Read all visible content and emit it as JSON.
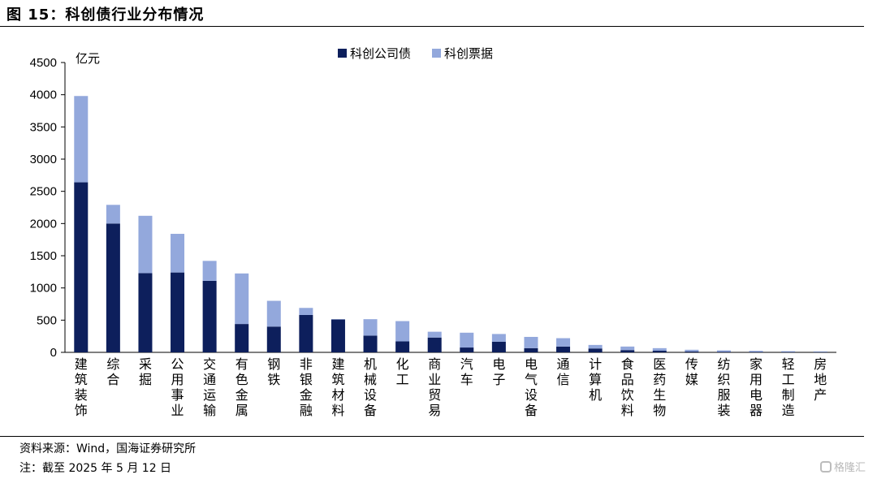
{
  "figure_title": "图 15：科创债行业分布情况",
  "chart_data": {
    "type": "bar",
    "stacked": true,
    "unit_label": "亿元",
    "ylim": [
      0,
      4500
    ],
    "yticks": [
      0,
      500,
      1000,
      1500,
      2000,
      2500,
      3000,
      3500,
      4000,
      4500
    ],
    "grid": false,
    "legend_position": "top-center",
    "categories": [
      "建筑装饰",
      "综合",
      "采掘",
      "公用事业",
      "交通运输",
      "有色金属",
      "钢铁",
      "非银金融",
      "建筑材料",
      "机械设备",
      "化工",
      "商业贸易",
      "汽车",
      "电子",
      "电气设备",
      "通信",
      "计算机",
      "食品饮料",
      "医药生物",
      "传媒",
      "纺织服装",
      "家用电器",
      "轻工制造",
      "房地产"
    ],
    "series": [
      {
        "name": "科创公司债",
        "color": "#0d1f5c",
        "values": [
          2640,
          2000,
          1230,
          1240,
          1110,
          440,
          400,
          580,
          510,
          260,
          170,
          230,
          75,
          165,
          65,
          90,
          60,
          35,
          25,
          15,
          10,
          8,
          5,
          4
        ]
      },
      {
        "name": "科创票据",
        "color": "#93a8dc",
        "values": [
          1340,
          290,
          890,
          600,
          310,
          785,
          400,
          110,
          5,
          255,
          315,
          90,
          230,
          120,
          175,
          130,
          55,
          55,
          40,
          25,
          20,
          15,
          12,
          10
        ]
      }
    ]
  },
  "footer": {
    "source": "资料来源：Wind，国海证券研究所",
    "note": "注：截至 2025 年 5 月 12 日"
  },
  "watermark": "格隆汇"
}
